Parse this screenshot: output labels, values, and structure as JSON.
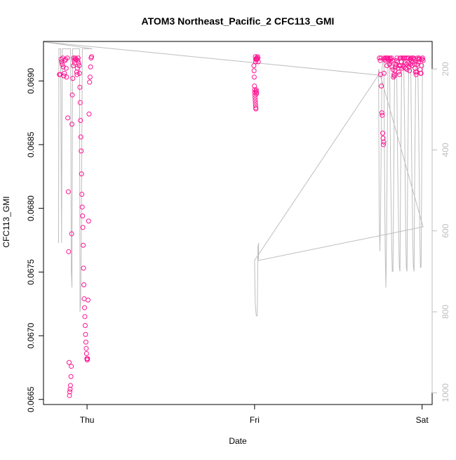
{
  "chart_data": {
    "type": "scatter",
    "title": "ATOM3 Northeast_Pacific_2 CFC113_GMI",
    "xlabel": "Date",
    "ylabel": "CFC113_GMI",
    "x_unit": "days",
    "x_ticks": [
      {
        "value": 1.0,
        "label": "Thu"
      },
      {
        "value": 2.0,
        "label": "Fri"
      },
      {
        "value": 3.0,
        "label": "Sat"
      }
    ],
    "xlim": [
      0.74,
      3.06
    ],
    "ylim": [
      0.06646,
      0.06931
    ],
    "y_ticks": [
      0.0665,
      0.067,
      0.0675,
      0.068,
      0.0685,
      0.069
    ],
    "y_tick_labels": [
      "0.0665",
      "0.0670",
      "0.0675",
      "0.0680",
      "0.0685",
      "0.0690"
    ],
    "y2_ticks": [
      200,
      400,
      600,
      800,
      1000
    ],
    "y2_tick_labels": [
      "200",
      "400",
      "600",
      "800",
      "1000"
    ],
    "y2lim": [
      1029,
      132
    ],
    "colors": {
      "points": "#ff1493",
      "pressure_line": "#bebebe",
      "axis": "#000000",
      "right_axis": "#bebebe"
    },
    "series": [
      {
        "name": "",
        "marker": "circle-open",
        "color": "#ff1493",
        "points": [
          [
            0.835,
            0.06905
          ],
          [
            0.84,
            0.06905
          ],
          [
            0.845,
            0.06917
          ],
          [
            0.848,
            0.06915
          ],
          [
            0.852,
            0.06913
          ],
          [
            0.855,
            0.06918
          ],
          [
            0.858,
            0.06911
          ],
          [
            0.862,
            0.06904
          ],
          [
            0.865,
            0.06906
          ],
          [
            0.868,
            0.06916
          ],
          [
            0.872,
            0.06917
          ],
          [
            0.875,
            0.0691
          ],
          [
            0.878,
            0.06903
          ],
          [
            0.882,
            0.06918
          ],
          [
            0.885,
            0.06871
          ],
          [
            0.888,
            0.06813
          ],
          [
            0.89,
            0.06766
          ],
          [
            0.893,
            0.06679
          ],
          [
            0.895,
            0.06653
          ],
          [
            0.897,
            0.06656
          ],
          [
            0.899,
            0.06658
          ],
          [
            0.901,
            0.06661
          ],
          [
            0.904,
            0.06668
          ],
          [
            0.906,
            0.06676
          ],
          [
            0.908,
            0.0678
          ],
          [
            0.91,
            0.06866
          ],
          [
            0.912,
            0.06889
          ],
          [
            0.915,
            0.06902
          ],
          [
            0.918,
            0.06912
          ],
          [
            0.92,
            0.06918
          ],
          [
            0.923,
            0.06916
          ],
          [
            0.926,
            0.06914
          ],
          [
            0.929,
            0.06918
          ],
          [
            0.932,
            0.06917
          ],
          [
            0.935,
            0.06917
          ],
          [
            0.938,
            0.06907
          ],
          [
            0.94,
            0.06905
          ],
          [
            0.942,
            0.0691
          ],
          [
            0.945,
            0.06916
          ],
          [
            0.947,
            0.06918
          ],
          [
            0.95,
            0.06914
          ],
          [
            0.953,
            0.06912
          ],
          [
            0.955,
            0.06906
          ],
          [
            0.957,
            0.06895
          ],
          [
            0.959,
            0.06883
          ],
          [
            0.961,
            0.06869
          ],
          [
            0.963,
            0.06856
          ],
          [
            0.965,
            0.06845
          ],
          [
            0.967,
            0.06827
          ],
          [
            0.969,
            0.06811
          ],
          [
            0.971,
            0.06801
          ],
          [
            0.973,
            0.06794
          ],
          [
            0.975,
            0.06785
          ],
          [
            0.977,
            0.06771
          ],
          [
            0.979,
            0.06753
          ],
          [
            0.981,
            0.0674
          ],
          [
            0.983,
            0.06729
          ],
          [
            0.985,
            0.06722
          ],
          [
            0.987,
            0.06715
          ],
          [
            0.989,
            0.06708
          ],
          [
            0.991,
            0.06701
          ],
          [
            0.993,
            0.06695
          ],
          [
            0.995,
            0.0669
          ],
          [
            0.997,
            0.06686
          ],
          [
            0.999,
            0.06682
          ],
          [
            1.001,
            0.06681
          ],
          [
            1.003,
            0.06682
          ],
          [
            1.006,
            0.06728
          ],
          [
            1.009,
            0.0679
          ],
          [
            1.012,
            0.06874
          ],
          [
            1.015,
            0.06899
          ],
          [
            1.018,
            0.06903
          ],
          [
            1.021,
            0.06911
          ],
          [
            1.024,
            0.06918
          ],
          [
            1.027,
            0.06919
          ],
          [
            2.005,
            0.06919
          ],
          [
            2.006,
            0.06917
          ],
          [
            2.007,
            0.06915
          ],
          [
            2.01,
            0.06917
          ],
          [
            2.012,
            0.06918
          ],
          [
            2.015,
            0.06917
          ],
          [
            2.018,
            0.06919
          ],
          [
            2.02,
            0.06918
          ],
          [
            2.022,
            0.06915
          ],
          [
            1.996,
            0.06912
          ],
          [
            1.997,
            0.06908
          ],
          [
            1.998,
            0.06903
          ],
          [
            1.999,
            0.06896
          ],
          [
            2.0,
            0.06893
          ],
          [
            2.001,
            0.06891
          ],
          [
            2.002,
            0.06889
          ],
          [
            2.003,
            0.06887
          ],
          [
            2.004,
            0.06885
          ],
          [
            2.005,
            0.06883
          ],
          [
            2.006,
            0.06881
          ],
          [
            2.007,
            0.06879
          ],
          [
            2.008,
            0.06878
          ],
          [
            2.009,
            0.06892
          ],
          [
            2.01,
            0.06893
          ],
          [
            2.011,
            0.06891
          ],
          [
            2.012,
            0.0689
          ],
          [
            2.745,
            0.06918
          ],
          [
            2.75,
            0.06916
          ],
          [
            2.752,
            0.06905
          ],
          [
            2.755,
            0.06918
          ],
          [
            2.757,
            0.06896
          ],
          [
            2.76,
            0.06875
          ],
          [
            2.762,
            0.06873
          ],
          [
            2.765,
            0.06859
          ],
          [
            2.767,
            0.06855
          ],
          [
            2.769,
            0.0685
          ],
          [
            2.771,
            0.06852
          ],
          [
            2.773,
            0.06906
          ],
          [
            2.775,
            0.06918
          ],
          [
            2.778,
            0.06917
          ],
          [
            2.781,
            0.06916
          ],
          [
            2.784,
            0.06918
          ],
          [
            2.787,
            0.06918
          ],
          [
            2.79,
            0.06912
          ],
          [
            2.793,
            0.06918
          ],
          [
            2.796,
            0.06918
          ],
          [
            2.799,
            0.06917
          ],
          [
            2.802,
            0.06916
          ],
          [
            2.805,
            0.06913
          ],
          [
            2.808,
            0.06918
          ],
          [
            2.811,
            0.06917
          ],
          [
            2.814,
            0.06915
          ],
          [
            2.817,
            0.06918
          ],
          [
            2.82,
            0.06911
          ],
          [
            2.823,
            0.06916
          ],
          [
            2.826,
            0.06909
          ],
          [
            2.829,
            0.06903
          ],
          [
            2.832,
            0.06905
          ],
          [
            2.835,
            0.06904
          ],
          [
            2.838,
            0.06908
          ],
          [
            2.841,
            0.06911
          ],
          [
            2.844,
            0.06913
          ],
          [
            2.847,
            0.06916
          ],
          [
            2.85,
            0.06918
          ],
          [
            2.853,
            0.06915
          ],
          [
            2.856,
            0.0691
          ],
          [
            2.859,
            0.06907
          ],
          [
            2.862,
            0.06912
          ],
          [
            2.865,
            0.06905
          ],
          [
            2.868,
            0.06918
          ],
          [
            2.871,
            0.06912
          ],
          [
            2.874,
            0.06918
          ],
          [
            2.877,
            0.06915
          ],
          [
            2.88,
            0.0691
          ],
          [
            2.883,
            0.06918
          ],
          [
            2.886,
            0.06912
          ],
          [
            2.889,
            0.06918
          ],
          [
            2.892,
            0.06911
          ],
          [
            2.895,
            0.06918
          ],
          [
            2.898,
            0.06914
          ],
          [
            2.901,
            0.0691
          ],
          [
            2.904,
            0.06918
          ],
          [
            2.907,
            0.06913
          ],
          [
            2.91,
            0.06909
          ],
          [
            2.913,
            0.06918
          ],
          [
            2.916,
            0.06914
          ],
          [
            2.919,
            0.06918
          ],
          [
            2.922,
            0.06911
          ],
          [
            2.925,
            0.06908
          ],
          [
            2.928,
            0.06913
          ],
          [
            2.931,
            0.06917
          ],
          [
            2.934,
            0.06918
          ],
          [
            2.937,
            0.06916
          ],
          [
            2.94,
            0.06912
          ],
          [
            2.943,
            0.06918
          ],
          [
            2.946,
            0.06915
          ],
          [
            2.949,
            0.06918
          ],
          [
            2.952,
            0.06917
          ],
          [
            2.955,
            0.06913
          ],
          [
            2.958,
            0.0691
          ],
          [
            2.961,
            0.06907
          ],
          [
            2.964,
            0.06905
          ],
          [
            2.967,
            0.06907
          ],
          [
            2.97,
            0.06913
          ],
          [
            2.973,
            0.06918
          ],
          [
            2.976,
            0.06917
          ],
          [
            2.979,
            0.06915
          ],
          [
            2.982,
            0.06918
          ],
          [
            2.985,
            0.06917
          ],
          [
            2.988,
            0.06909
          ],
          [
            2.991,
            0.06906
          ],
          [
            2.994,
            0.06906
          ],
          [
            2.997,
            0.06912
          ],
          [
            3.0,
            0.06917
          ],
          [
            3.003,
            0.06918
          ],
          [
            3.006,
            0.06916
          ]
        ]
      },
      {
        "name": "",
        "line": true,
        "axis": "right",
        "color": "#bebebe",
        "points": [
          [
            0.83,
            630
          ],
          [
            0.832,
            150
          ],
          [
            0.836,
            150
          ],
          [
            0.842,
            150
          ],
          [
            0.848,
            630
          ],
          [
            0.852,
            150
          ],
          [
            0.86,
            150
          ],
          [
            0.866,
            150
          ],
          [
            0.872,
            150
          ],
          [
            0.876,
            150
          ],
          [
            0.88,
            150
          ],
          [
            0.886,
            150
          ],
          [
            0.892,
            150
          ],
          [
            0.898,
            150
          ],
          [
            0.902,
            150
          ],
          [
            0.906,
            700
          ],
          [
            0.91,
            740
          ],
          [
            0.914,
            150
          ],
          [
            0.918,
            150
          ],
          [
            0.924,
            150
          ],
          [
            0.93,
            150
          ],
          [
            0.936,
            150
          ],
          [
            0.942,
            150
          ],
          [
            0.948,
            150
          ],
          [
            0.955,
            150
          ],
          [
            0.958,
            800
          ],
          [
            0.962,
            780
          ],
          [
            0.966,
            600
          ],
          [
            0.972,
            150
          ],
          [
            0.98,
            150
          ],
          [
            0.986,
            150
          ],
          [
            0.992,
            150
          ],
          [
            0.998,
            150
          ],
          [
            1.004,
            150
          ],
          [
            1.01,
            150
          ],
          [
            1.016,
            150
          ],
          [
            1.02,
            150
          ],
          [
            1.024,
            150
          ],
          [
            1.028,
            150
          ],
          [
            1.032,
            150
          ],
          [
            0.74,
            133
          ],
          [
            2.74,
            215
          ],
          [
            2.0,
            673
          ],
          [
            2.004,
            780
          ],
          [
            2.01,
            810
          ],
          [
            2.016,
            810
          ],
          [
            2.02,
            640
          ],
          [
            2.024,
            630
          ],
          [
            2.024,
            673
          ],
          [
            2.024,
            673
          ],
          [
            3.006,
            590
          ],
          [
            2.74,
            200
          ],
          [
            2.744,
            560
          ],
          [
            2.748,
            650
          ],
          [
            2.752,
            560
          ],
          [
            2.756,
            380
          ],
          [
            2.76,
            200
          ],
          [
            2.766,
            180
          ],
          [
            2.772,
            180
          ],
          [
            2.776,
            450
          ],
          [
            2.78,
            660
          ],
          [
            2.784,
            740
          ],
          [
            2.788,
            600
          ],
          [
            2.792,
            400
          ],
          [
            2.796,
            200
          ],
          [
            2.8,
            180
          ],
          [
            2.806,
            180
          ],
          [
            2.812,
            450
          ],
          [
            2.818,
            620
          ],
          [
            2.822,
            700
          ],
          [
            2.826,
            700
          ],
          [
            2.83,
            500
          ],
          [
            2.836,
            200
          ],
          [
            2.84,
            180
          ],
          [
            2.848,
            180
          ],
          [
            2.854,
            430
          ],
          [
            2.86,
            600
          ],
          [
            2.864,
            690
          ],
          [
            2.868,
            700
          ],
          [
            2.872,
            450
          ],
          [
            2.878,
            200
          ],
          [
            2.884,
            180
          ],
          [
            2.89,
            180
          ],
          [
            2.896,
            350
          ],
          [
            2.902,
            600
          ],
          [
            2.906,
            690
          ],
          [
            2.91,
            700
          ],
          [
            2.914,
            450
          ],
          [
            2.92,
            200
          ],
          [
            2.926,
            180
          ],
          [
            2.932,
            180
          ],
          [
            2.938,
            430
          ],
          [
            2.944,
            620
          ],
          [
            2.948,
            690
          ],
          [
            2.952,
            700
          ],
          [
            2.956,
            450
          ],
          [
            2.962,
            200
          ],
          [
            2.968,
            180
          ],
          [
            2.974,
            180
          ],
          [
            2.98,
            350
          ],
          [
            2.986,
            600
          ],
          [
            2.99,
            690
          ],
          [
            2.994,
            690
          ],
          [
            2.998,
            450
          ],
          [
            3.002,
            210
          ],
          [
            3.006,
            170
          ]
        ]
      }
    ]
  }
}
